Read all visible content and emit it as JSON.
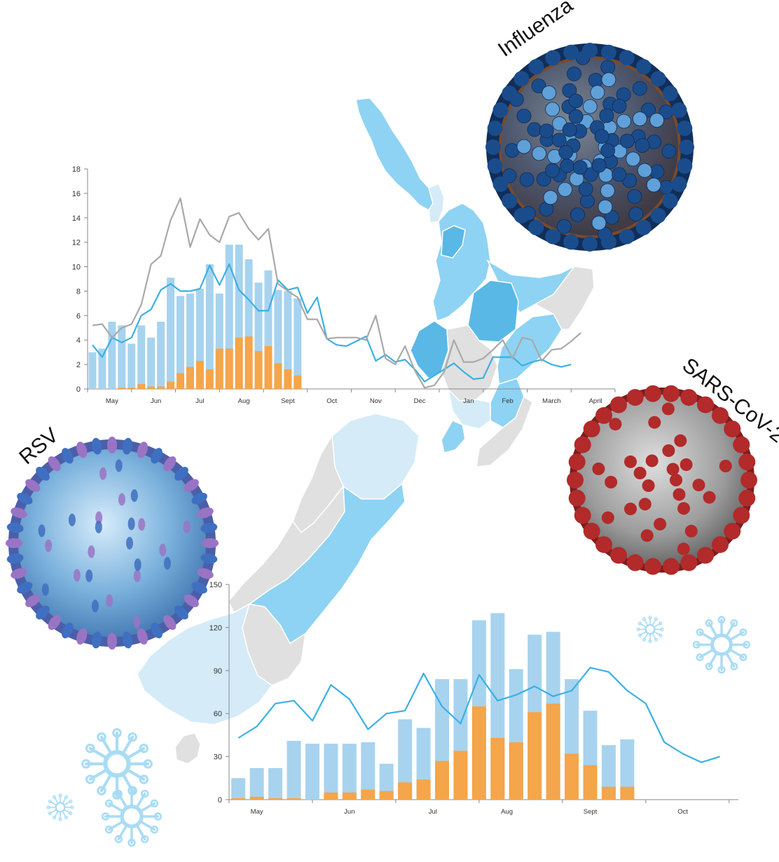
{
  "labels": {
    "influenza": "Influenza",
    "rsv": "RSV",
    "sars": "SARS-CoV-2"
  },
  "colors": {
    "bar_total": "#a7d3ef",
    "bar_subset": "#f5a54a",
    "line_blue": "#3bb0e3",
    "line_grey": "#a9a9a9",
    "axis": "#888888",
    "map_light": "#d5ebf8",
    "map_mid": "#8ed3f3",
    "map_dark": "#5ab8e6",
    "map_grey": "#e0e0e0",
    "influenza_dark": "#1a4c8c",
    "influenza_light": "#5fa0d8",
    "influenza_core": "#7a4a2a",
    "rsv_body": "#7cb2dd",
    "rsv_spike_blue": "#3f6fc0",
    "rsv_spike_purple": "#9a74c4",
    "sars_body": "#b4b4b4",
    "sars_spike": "#b22a2a",
    "snowflake": "#a9dcf4"
  },
  "chart_data": [
    {
      "type": "bar",
      "series": [
        {
          "style": "bar",
          "values": [
            3.0,
            3.3,
            5.5,
            5.2,
            3.7,
            5.2,
            4.2,
            5.5,
            9.1,
            7.6,
            7.8,
            8.2,
            10.2,
            7.8,
            11.8,
            11.8,
            10.6,
            8.7,
            9.7,
            8.1,
            8.0,
            7.4
          ]
        },
        {
          "style": "bar-overlay",
          "values": [
            0.0,
            0.0,
            0.0,
            0.1,
            0.1,
            0.4,
            0.2,
            0.2,
            0.6,
            1.3,
            1.8,
            2.3,
            1.6,
            3.3,
            3.3,
            4.2,
            4.3,
            3.1,
            3.5,
            2.1,
            1.6,
            1.1
          ]
        },
        {
          "style": "line-blue",
          "values": [
            3.6,
            2.6,
            4.2,
            3.8,
            4.2,
            6.0,
            6.5,
            8.1,
            8.6,
            8.0,
            8.0,
            8.2,
            10.1,
            8.5,
            10.2,
            8.1,
            7.3,
            6.4,
            6.4,
            8.9,
            8.1,
            8.3,
            6.2,
            7.5,
            4.1,
            3.6,
            3.5,
            3.9,
            4.3,
            2.3,
            2.8,
            2.2,
            2.4,
            1.6,
            0.6,
            1.1,
            1.6,
            2.1,
            1.4,
            0.8,
            0.9,
            2.6,
            2.6,
            2.6,
            1.9,
            2.2,
            2.4,
            2.0,
            1.8,
            2.0
          ]
        },
        {
          "style": "line-grey",
          "values": [
            5.2,
            5.3,
            4.2,
            5.0,
            5.3,
            6.9,
            10.2,
            10.9,
            13.8,
            15.6,
            11.6,
            13.9,
            12.6,
            12.0,
            14.1,
            14.4,
            13.1,
            12.2,
            13.1,
            8.6,
            8.0,
            7.5,
            5.7,
            5.7,
            4.1,
            4.2,
            4.2,
            4.2,
            4.0,
            6.0,
            2.5,
            2.0,
            3.5,
            1.5,
            0.1,
            0.3,
            1.4,
            4.0,
            2.2,
            2.2,
            2.5,
            3.2,
            4.0,
            2.5,
            4.2,
            4.0,
            2.3,
            3.2,
            3.3,
            3.9,
            4.6
          ]
        }
      ],
      "ylim": [
        0,
        18
      ],
      "yticks": [
        0,
        2,
        4,
        6,
        8,
        10,
        12,
        14,
        16,
        18
      ],
      "xlim": [
        0,
        54
      ],
      "month_ticks": [
        {
          "label": "May",
          "x": 2.5
        },
        {
          "label": "Jun",
          "x": 7
        },
        {
          "label": "Jul",
          "x": 11.5
        },
        {
          "label": "Aug",
          "x": 16
        },
        {
          "label": "Sept",
          "x": 20.5
        },
        {
          "label": "Oct",
          "x": 25
        },
        {
          "label": "Nov",
          "x": 29.5
        },
        {
          "label": "Dec",
          "x": 34
        },
        {
          "label": "Jan",
          "x": 39
        },
        {
          "label": "Feb",
          "x": 43
        },
        {
          "label": "March",
          "x": 47.5
        },
        {
          "label": "April",
          "x": 52
        }
      ],
      "grid": false
    },
    {
      "type": "bar",
      "series": [
        {
          "style": "bar",
          "values": [
            15,
            22,
            22,
            41,
            39,
            39,
            39,
            40,
            25,
            56,
            50,
            84,
            84,
            125,
            130,
            91,
            115,
            117,
            84,
            62,
            38,
            42
          ]
        },
        {
          "style": "bar-overlay",
          "values": [
            1,
            2,
            1,
            1,
            0,
            5,
            5,
            7,
            6,
            12,
            14,
            27,
            34,
            65,
            43,
            40,
            61,
            67,
            32,
            24,
            9,
            9
          ]
        },
        {
          "style": "line-blue",
          "values": [
            43,
            51,
            67,
            69,
            55,
            80,
            70,
            49,
            60,
            62,
            88,
            65,
            53,
            87,
            69,
            73,
            79,
            72,
            76,
            92,
            89,
            76,
            67,
            40,
            32,
            26,
            30
          ]
        }
      ],
      "ylim": [
        0,
        150
      ],
      "yticks": [
        0,
        30,
        60,
        90,
        120,
        150
      ],
      "xlim": [
        0,
        27.5
      ],
      "month_ticks": [
        {
          "label": "May",
          "x": 1.5
        },
        {
          "label": "Jun",
          "x": 6.5
        },
        {
          "label": "Jul",
          "x": 11
        },
        {
          "label": "Aug",
          "x": 15
        },
        {
          "label": "Sept",
          "x": 19.5
        },
        {
          "label": "Oct",
          "x": 24.5
        }
      ],
      "grid": false
    }
  ]
}
